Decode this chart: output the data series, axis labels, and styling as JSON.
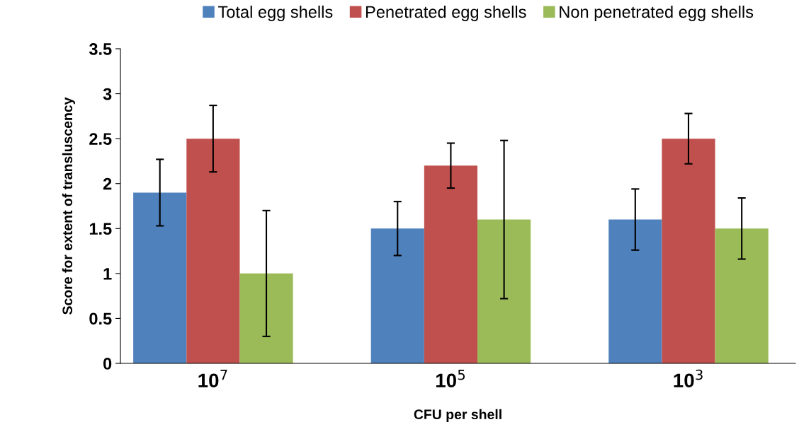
{
  "chart_data": {
    "type": "bar",
    "xlabel": "CFU per shell",
    "ylabel": "Score for extent of transluscency",
    "categories": [
      "10$^{7}$",
      "10$^{5}$",
      "10$^{3}$"
    ],
    "series": [
      {
        "name": "Total egg shells",
        "color": "#4f81bd",
        "values": [
          1.9,
          1.5,
          1.6
        ],
        "errors": [
          0.37,
          0.3,
          0.34
        ]
      },
      {
        "name": "Penetrated egg shells",
        "color": "#c0504d",
        "values": [
          2.5,
          2.2,
          2.5
        ],
        "errors": [
          0.37,
          0.25,
          0.28
        ]
      },
      {
        "name": "Non penetrated egg shells",
        "color": "#9bbb59",
        "values": [
          1.0,
          1.6,
          1.5
        ],
        "errors": [
          0.7,
          0.88,
          0.34
        ]
      }
    ],
    "ylim": [
      0,
      3.5
    ],
    "yticks": [
      0,
      0.5,
      1,
      1.5,
      2,
      2.5,
      3,
      3.5
    ],
    "legend": "top",
    "grid": false
  }
}
